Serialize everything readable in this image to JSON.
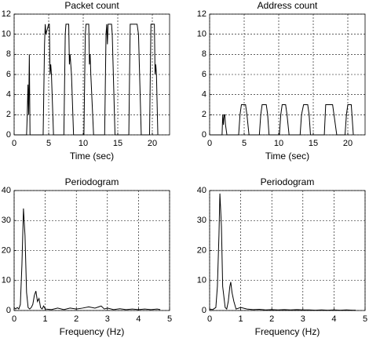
{
  "chart_data": [
    {
      "type": "line",
      "title": "Packet count",
      "xlabel": "Time (sec)",
      "color": "#000000",
      "grid": true,
      "xlim": [
        0,
        22.5
      ],
      "ylim": [
        0,
        12
      ],
      "xticks": [
        0,
        5,
        10,
        15,
        20
      ],
      "yticks": [
        0,
        2,
        4,
        6,
        8,
        10,
        12
      ],
      "x": [
        0,
        1.8,
        1.9,
        2.0,
        2.1,
        2.2,
        2.3,
        4.2,
        4.4,
        4.5,
        4.6,
        5.0,
        5.1,
        5.2,
        5.3,
        5.4,
        5.7,
        7.2,
        7.4,
        7.5,
        7.9,
        8.0,
        8.1,
        8.3,
        8.6,
        10.1,
        10.3,
        10.4,
        10.8,
        10.9,
        11.0,
        11.1,
        11.5,
        13.1,
        13.3,
        13.4,
        13.5,
        13.6,
        13.7,
        14.1,
        14.2,
        14.6,
        16.6,
        16.8,
        17.0,
        17.8,
        18.0,
        18.4,
        19.6,
        19.8,
        19.9,
        20.3,
        20.4,
        20.5,
        20.6,
        20.8
      ],
      "values": [
        0,
        0,
        2,
        5,
        2,
        8,
        0,
        0,
        9,
        11,
        10,
        11,
        11,
        6,
        7,
        6,
        0,
        0,
        10,
        11,
        11,
        7,
        8,
        6,
        0,
        0,
        10,
        11,
        11,
        7,
        8,
        6,
        0,
        0,
        10,
        11,
        9,
        11,
        11,
        11,
        10,
        0,
        0,
        11,
        11,
        11,
        10,
        0,
        0,
        11,
        11,
        11,
        6,
        7,
        6,
        0
      ]
    },
    {
      "type": "line",
      "title": "Address count",
      "xlabel": "Time (sec)",
      "color": "#000000",
      "grid": true,
      "xlim": [
        0,
        22.5
      ],
      "ylim": [
        0,
        12
      ],
      "xticks": [
        0,
        5,
        10,
        15,
        20
      ],
      "yticks": [
        0,
        2,
        4,
        6,
        8,
        10,
        12
      ],
      "x": [
        0,
        1.8,
        1.9,
        2.0,
        2.1,
        2.2,
        2.3,
        2.5,
        4.2,
        4.4,
        4.6,
        5.2,
        5.4,
        5.7,
        7.2,
        7.4,
        7.6,
        8.2,
        8.4,
        8.6,
        10.1,
        10.3,
        10.5,
        11.0,
        11.2,
        11.5,
        13.1,
        13.3,
        13.6,
        14.2,
        14.4,
        14.6,
        16.6,
        16.8,
        17.0,
        17.8,
        18.0,
        18.4,
        19.6,
        19.8,
        20.0,
        20.5,
        20.6,
        20.8
      ],
      "values": [
        0,
        0,
        2,
        1,
        2,
        2,
        1,
        0,
        0,
        2,
        3,
        3,
        2,
        0,
        0,
        2,
        3,
        3,
        2,
        0,
        0,
        2,
        3,
        3,
        2,
        0,
        0,
        2,
        3,
        3,
        2,
        0,
        0,
        3,
        3,
        3,
        2,
        0,
        0,
        2,
        3,
        3,
        2,
        0
      ]
    },
    {
      "type": "line",
      "title": "Periodogram",
      "xlabel": "Frequency (Hz)",
      "color": "#000000",
      "grid": true,
      "xlim": [
        0,
        5
      ],
      "ylim": [
        0,
        40
      ],
      "xticks": [
        0,
        1,
        2,
        3,
        4,
        5
      ],
      "yticks": [
        0,
        10,
        20,
        30,
        40
      ],
      "x": [
        0,
        0.05,
        0.1,
        0.15,
        0.2,
        0.25,
        0.3,
        0.35,
        0.4,
        0.45,
        0.5,
        0.55,
        0.6,
        0.65,
        0.7,
        0.75,
        0.8,
        0.85,
        0.9,
        0.95,
        1.0,
        1.2,
        1.4,
        1.6,
        1.8,
        2.0,
        2.2,
        2.4,
        2.6,
        2.8,
        2.9,
        3.0,
        3.2,
        3.4,
        3.6,
        3.8,
        4.0,
        4.2,
        4.4,
        4.6,
        4.7
      ],
      "values": [
        1,
        0.5,
        1,
        0.5,
        2,
        15,
        34,
        25,
        6,
        1,
        0.5,
        1,
        2,
        5,
        6.5,
        3,
        4,
        1,
        0.5,
        1.5,
        0.5,
        0.3,
        0.8,
        0.3,
        0.8,
        0.5,
        0.8,
        1.2,
        0.8,
        1.5,
        0.5,
        0.8,
        0.3,
        0.6,
        0.3,
        0.5,
        0.3,
        0.5,
        0.3,
        0.5,
        0.3
      ]
    },
    {
      "type": "line",
      "title": "Periodogram",
      "xlabel": "Frequency (Hz)",
      "color": "#000000",
      "grid": true,
      "xlim": [
        0,
        5
      ],
      "ylim": [
        0,
        40
      ],
      "xticks": [
        0,
        1,
        2,
        3,
        4,
        5
      ],
      "yticks": [
        0,
        10,
        20,
        30,
        40
      ],
      "x": [
        0,
        0.1,
        0.2,
        0.25,
        0.3,
        0.33,
        0.38,
        0.42,
        0.5,
        0.55,
        0.6,
        0.65,
        0.68,
        0.72,
        0.78,
        0.85,
        1.0,
        1.2,
        1.4,
        1.6,
        1.8,
        2.0,
        2.2,
        2.4,
        2.6,
        2.8,
        3.0,
        3.2,
        3.4,
        3.6,
        3.8,
        4.0,
        4.2,
        4.4,
        4.6,
        4.7
      ],
      "values": [
        0.5,
        0.3,
        1,
        8,
        25,
        39,
        28,
        8,
        1,
        0.5,
        3,
        8,
        9.5,
        6,
        3,
        0.5,
        1,
        0.5,
        0.3,
        0.4,
        0.2,
        0.3,
        0.2,
        0.3,
        0.2,
        0.3,
        0.2,
        0.2,
        0.1,
        0.2,
        0.1,
        0.2,
        0.1,
        0.2,
        0.1,
        0.1
      ]
    }
  ]
}
